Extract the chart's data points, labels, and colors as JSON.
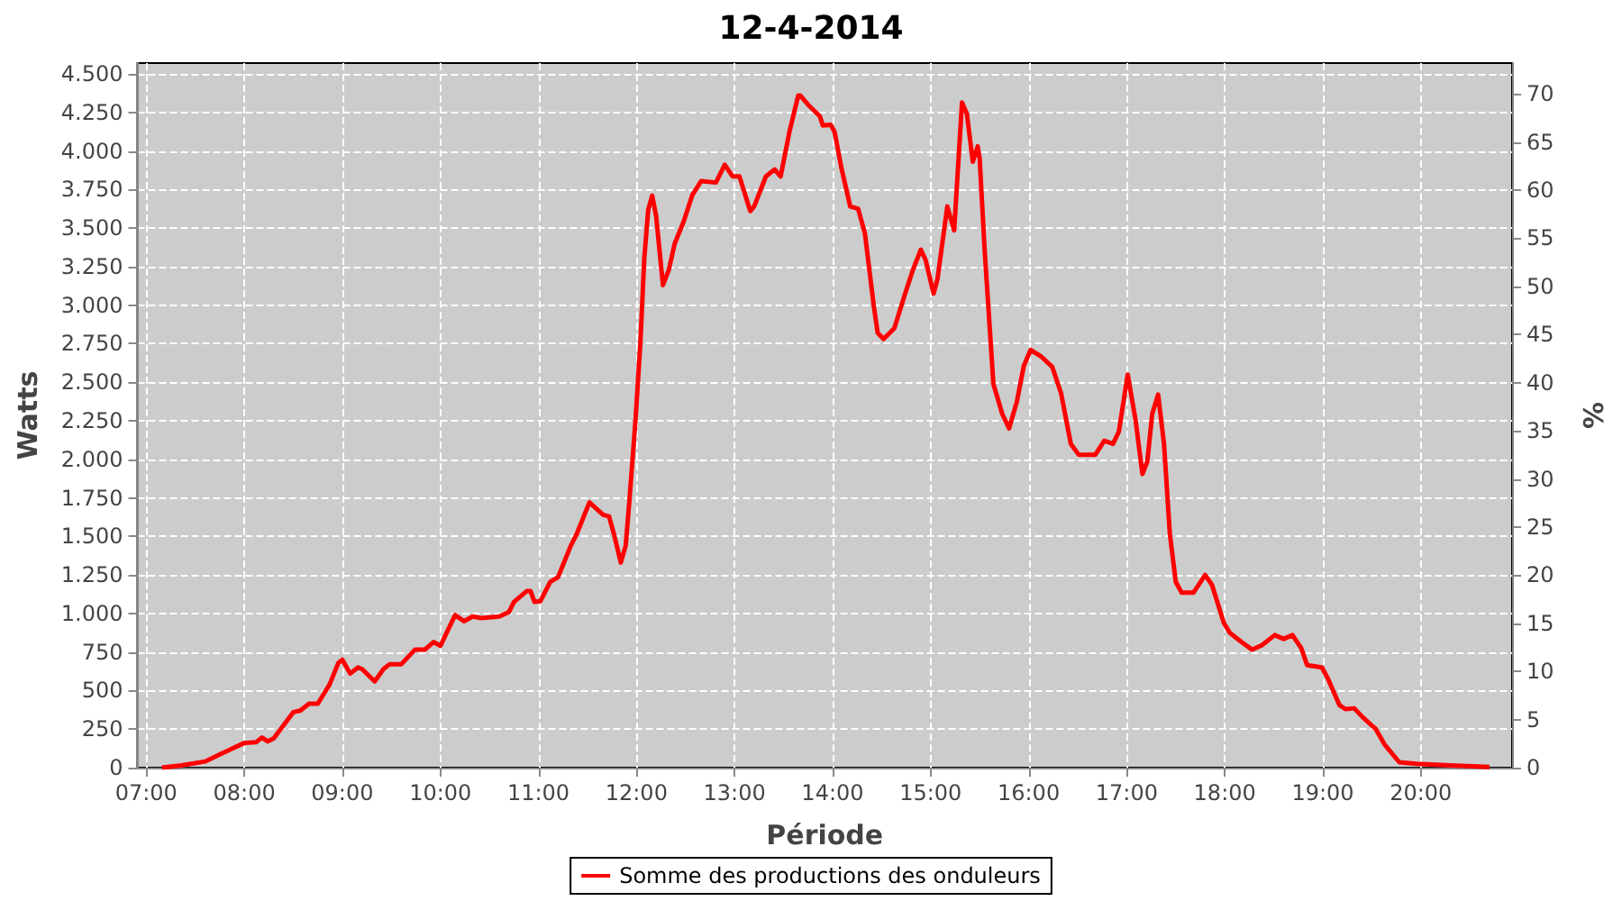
{
  "chart_data": {
    "type": "line",
    "title": "12-4-2014",
    "xlabel": "Période",
    "ylabel": "Watts",
    "y2label": "%",
    "x": [
      7.16,
      7.36,
      7.6,
      7.78,
      8.0,
      8.12,
      8.18,
      8.24,
      8.3,
      8.5,
      8.57,
      8.66,
      8.75,
      8.87,
      8.96,
      9.0,
      9.08,
      9.16,
      9.2,
      9.33,
      9.42,
      9.48,
      9.6,
      9.74,
      9.84,
      9.93,
      10.0,
      10.15,
      10.24,
      10.33,
      10.42,
      10.6,
      10.7,
      10.75,
      10.88,
      10.92,
      10.96,
      11.02,
      11.12,
      11.2,
      11.33,
      11.39,
      11.52,
      11.66,
      11.72,
      11.77,
      11.84,
      11.89,
      11.93,
      11.99,
      12.04,
      12.08,
      12.12,
      12.16,
      12.2,
      12.27,
      12.33,
      12.39,
      12.48,
      12.57,
      12.66,
      12.81,
      12.9,
      12.98,
      13.05,
      13.16,
      13.2,
      13.32,
      13.41,
      13.47,
      13.56,
      13.65,
      13.67,
      13.75,
      13.87,
      13.9,
      13.98,
      14.02,
      14.09,
      14.18,
      14.26,
      14.33,
      14.42,
      14.46,
      14.52,
      14.63,
      14.73,
      14.82,
      14.9,
      14.95,
      15.03,
      15.07,
      15.17,
      15.24,
      15.32,
      15.37,
      15.43,
      15.48,
      15.5,
      15.55,
      15.64,
      15.73,
      15.8,
      15.88,
      15.95,
      16.02,
      16.13,
      16.24,
      16.33,
      16.43,
      16.51,
      16.68,
      16.77,
      16.86,
      16.92,
      17.01,
      17.09,
      17.16,
      17.21,
      17.26,
      17.32,
      17.38,
      17.44,
      17.5,
      17.56,
      17.68,
      17.8,
      17.87,
      17.99,
      18.05,
      18.17,
      18.28,
      18.38,
      18.51,
      18.6,
      18.69,
      18.78,
      18.84,
      18.99,
      19.05,
      19.17,
      19.23,
      19.32,
      19.41,
      19.54,
      19.63,
      19.78,
      19.96,
      20.3,
      20.7
    ],
    "series": [
      {
        "name": "Somme des productions des onduleurs",
        "color": "#ff0000",
        "values": [
          0,
          15,
          40,
          95,
          160,
          165,
          195,
          170,
          190,
          360,
          370,
          415,
          415,
          540,
          680,
          700,
          610,
          650,
          640,
          560,
          640,
          670,
          670,
          765,
          765,
          815,
          790,
          990,
          950,
          980,
          970,
          980,
          1010,
          1075,
          1145,
          1145,
          1075,
          1080,
          1205,
          1235,
          1440,
          1515,
          1720,
          1640,
          1630,
          1515,
          1330,
          1440,
          1750,
          2255,
          2760,
          3310,
          3620,
          3710,
          3580,
          3130,
          3230,
          3400,
          3540,
          3715,
          3805,
          3795,
          3910,
          3835,
          3835,
          3610,
          3640,
          3835,
          3880,
          3835,
          4125,
          4360,
          4360,
          4300,
          4225,
          4165,
          4170,
          4125,
          3890,
          3640,
          3625,
          3465,
          2995,
          2820,
          2780,
          2850,
          3055,
          3230,
          3360,
          3290,
          3075,
          3170,
          3640,
          3485,
          4315,
          4240,
          3930,
          4030,
          3950,
          3365,
          2490,
          2295,
          2200,
          2375,
          2605,
          2710,
          2665,
          2600,
          2430,
          2100,
          2030,
          2030,
          2120,
          2100,
          2180,
          2550,
          2255,
          1905,
          1985,
          2295,
          2420,
          2100,
          1515,
          1205,
          1135,
          1135,
          1250,
          1185,
          940,
          875,
          815,
          765,
          795,
          860,
          835,
          860,
          775,
          665,
          650,
          580,
          405,
          380,
          385,
          325,
          250,
          150,
          35,
          25,
          15,
          5
        ]
      }
    ],
    "xlim": [
      6.91,
      20.93
    ],
    "xticks": [
      {
        "value": 7,
        "label": "07:00"
      },
      {
        "value": 8,
        "label": "08:00"
      },
      {
        "value": 9,
        "label": "09:00"
      },
      {
        "value": 10,
        "label": "10:00"
      },
      {
        "value": 11,
        "label": "11:00"
      },
      {
        "value": 12,
        "label": "12:00"
      },
      {
        "value": 13,
        "label": "13:00"
      },
      {
        "value": 14,
        "label": "14:00"
      },
      {
        "value": 15,
        "label": "15:00"
      },
      {
        "value": 16,
        "label": "16:00"
      },
      {
        "value": 17,
        "label": "17:00"
      },
      {
        "value": 18,
        "label": "18:00"
      },
      {
        "value": 19,
        "label": "19:00"
      },
      {
        "value": 20,
        "label": "20:00"
      }
    ],
    "ylim": [
      0,
      4570
    ],
    "yticks": [
      0,
      250,
      500,
      750,
      {
        "value": 1000,
        "label": "1.000"
      },
      {
        "value": 1250,
        "label": "1.250"
      },
      {
        "value": 1500,
        "label": "1.500"
      },
      {
        "value": 1750,
        "label": "1.750"
      },
      {
        "value": 2000,
        "label": "2.000"
      },
      {
        "value": 2250,
        "label": "2.250"
      },
      {
        "value": 2500,
        "label": "2.500"
      },
      {
        "value": 2750,
        "label": "2.750"
      },
      {
        "value": 3000,
        "label": "3.000"
      },
      {
        "value": 3250,
        "label": "3.250"
      },
      {
        "value": 3500,
        "label": "3.500"
      },
      {
        "value": 3750,
        "label": "3.750"
      },
      {
        "value": 4000,
        "label": "4.000"
      },
      {
        "value": 4250,
        "label": "4.250"
      },
      {
        "value": 4500,
        "label": "4.500"
      }
    ],
    "y2lim": [
      0,
      73.2
    ],
    "y2ticks": [
      0,
      5,
      10,
      15,
      20,
      25,
      30,
      35,
      40,
      45,
      50,
      55,
      60,
      65,
      70
    ],
    "grid": true,
    "legend": "bottom",
    "marker": "none",
    "line_style": "solid"
  }
}
